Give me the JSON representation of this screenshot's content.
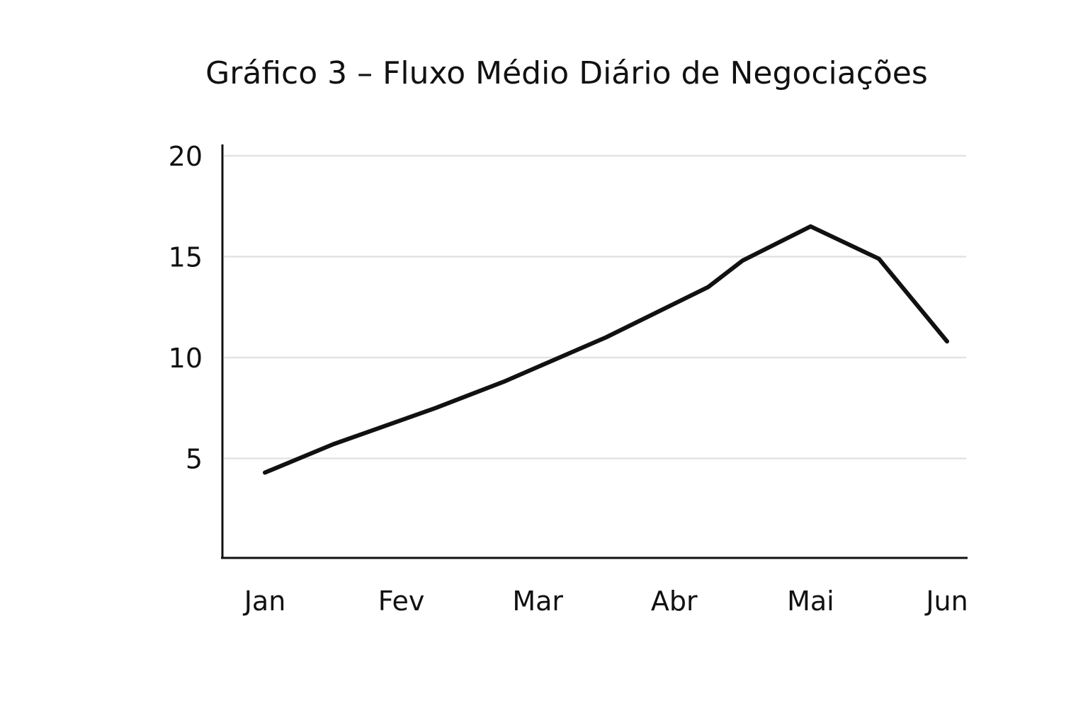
{
  "chart_data": {
    "type": "line",
    "title": "Gráfico 3 – Fluxo Médio Diário de Negociações",
    "xlabel": "",
    "ylabel": "",
    "categories": [
      "Jan",
      "Fev",
      "Mar",
      "Abr",
      "Mai",
      "Jun"
    ],
    "x_positions": [
      0,
      1,
      2,
      3,
      4,
      5
    ],
    "ylim": [
      0,
      20
    ],
    "yticks": [
      5,
      10,
      15,
      20
    ],
    "grid": true,
    "legend": "none",
    "series": [
      {
        "x": [
          0,
          0.5,
          1.25,
          1.75,
          2.5,
          3.25,
          3.5,
          4.0,
          4.5,
          5.0
        ],
        "values": [
          4.3,
          5.7,
          7.5,
          8.8,
          11.0,
          13.5,
          14.8,
          16.5,
          14.9,
          10.8
        ],
        "color": "#111111"
      }
    ]
  }
}
